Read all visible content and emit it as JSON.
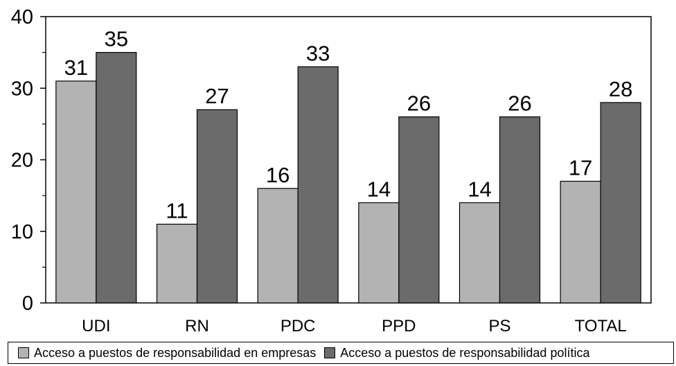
{
  "chart_data": {
    "type": "bar",
    "categories": [
      "UDI",
      "RN",
      "PDC",
      "PPD",
      "PS",
      "TOTAL"
    ],
    "series": [
      {
        "name": "Acceso a puestos de responsabilidad en empresas",
        "values": [
          31,
          11,
          16,
          14,
          14,
          17
        ],
        "color": "#b3b3b3"
      },
      {
        "name": "Acceso a puestos de responsabilidad política",
        "values": [
          35,
          27,
          33,
          26,
          26,
          28
        ],
        "color": "#6b6b6b"
      }
    ],
    "ylim": [
      0,
      40
    ],
    "yticks": [
      0,
      10,
      20,
      30,
      40
    ],
    "minor_ticks_per_interval": 2,
    "grid": false,
    "legend_position": "bottom",
    "data_labels": true
  }
}
